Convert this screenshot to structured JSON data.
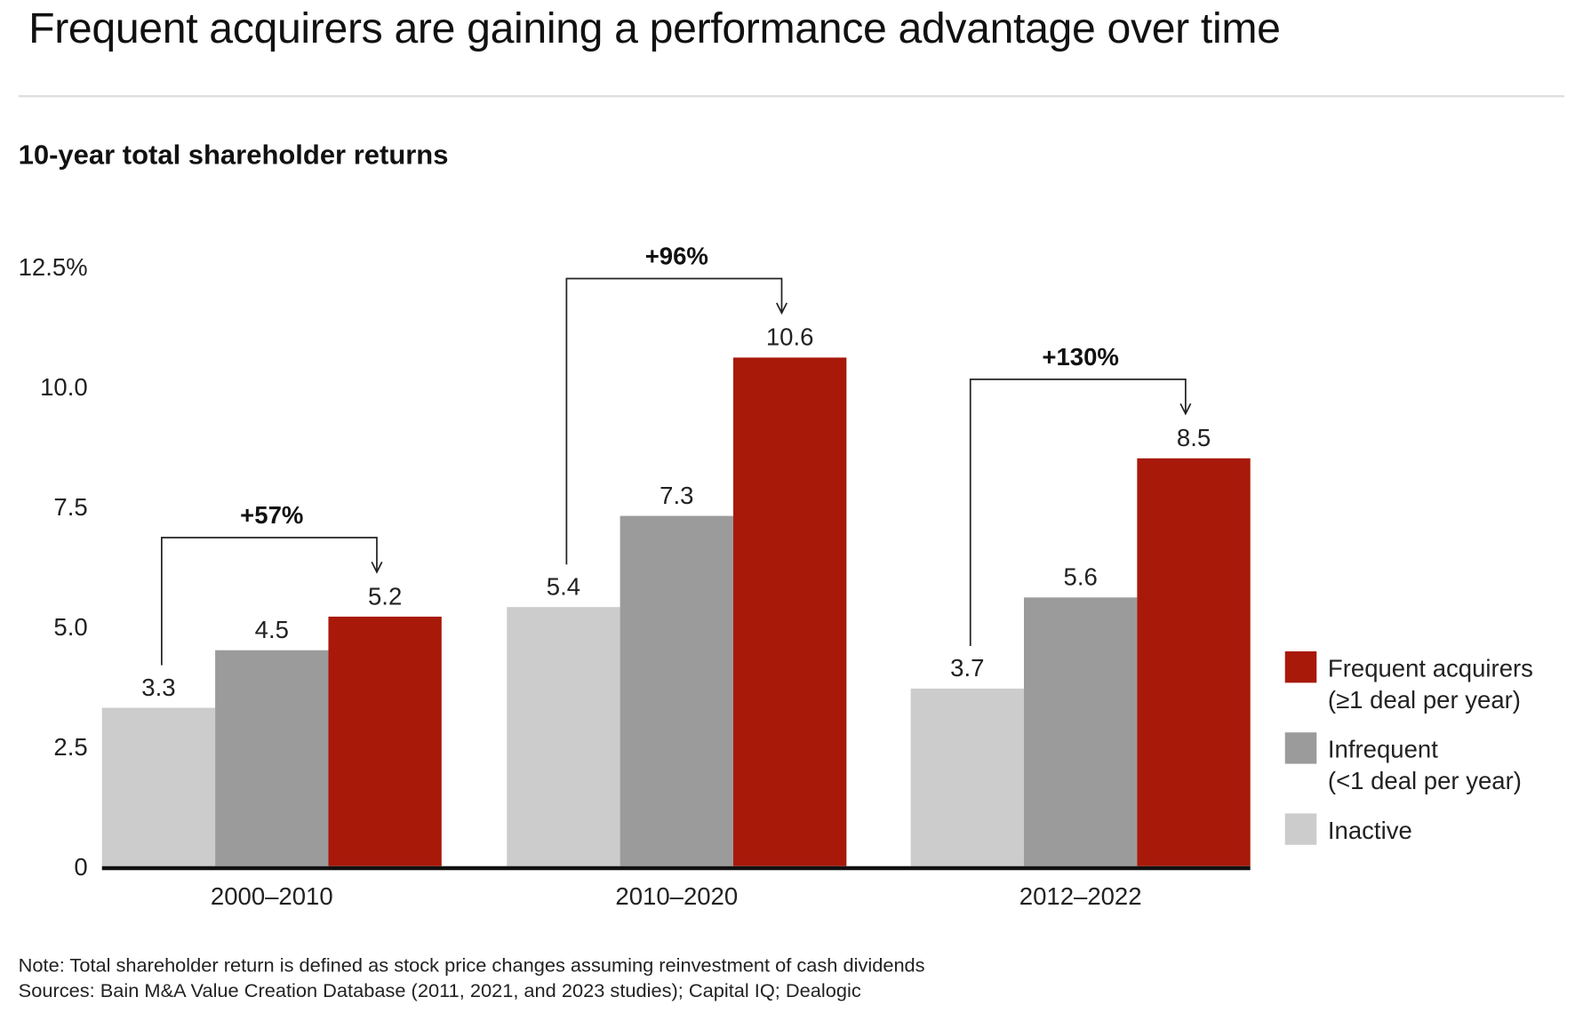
{
  "title": "Frequent acquirers are gaining a performance advantage over time",
  "chart_data": {
    "type": "bar",
    "title": "10-year total shareholder returns",
    "xlabel": "",
    "ylabel": "",
    "ylim": [
      0,
      12.5
    ],
    "yticks": [
      "0",
      "2.5",
      "5.0",
      "7.5",
      "10.0",
      "12.5%"
    ],
    "ytick_values": [
      0,
      2.5,
      5,
      7.5,
      10,
      12.5
    ],
    "categories": [
      "2000–2010",
      "2010–2020",
      "2012–2022"
    ],
    "series": [
      {
        "name": "Inactive",
        "color": "#cccccc",
        "values": [
          3.3,
          5.4,
          3.7
        ]
      },
      {
        "name": "Infrequent (<1 deal per year)",
        "color": "#9b9b9b",
        "values": [
          4.5,
          7.3,
          5.6
        ]
      },
      {
        "name": "Frequent acquirers (≥1 deal per year)",
        "color": "#a8190a",
        "values": [
          5.2,
          10.6,
          8.5
        ]
      }
    ],
    "data_labels": [
      [
        "3.3",
        "4.5",
        "5.2"
      ],
      [
        "5.4",
        "7.3",
        "10.6"
      ],
      [
        "3.7",
        "5.6",
        "8.5"
      ]
    ],
    "annotations": [
      "+57%",
      "+96%",
      "+130%"
    ],
    "legend": {
      "placement": "right",
      "items": [
        {
          "line1": "Frequent acquirers",
          "line2": "(≥1 deal per year)",
          "color": "#a8190a"
        },
        {
          "line1": "Infrequent",
          "line2": "(<1 deal per year)",
          "color": "#9b9b9b"
        },
        {
          "line1": "Inactive",
          "line2": "",
          "color": "#cccccc"
        }
      ]
    },
    "grid": false
  },
  "notes": {
    "note": "Note: Total shareholder return is defined as stock price changes assuming reinvestment of cash dividends",
    "sources": "Sources: Bain M&A Value Creation Database (2011, 2021, and 2023 studies); Capital IQ; Dealogic"
  }
}
